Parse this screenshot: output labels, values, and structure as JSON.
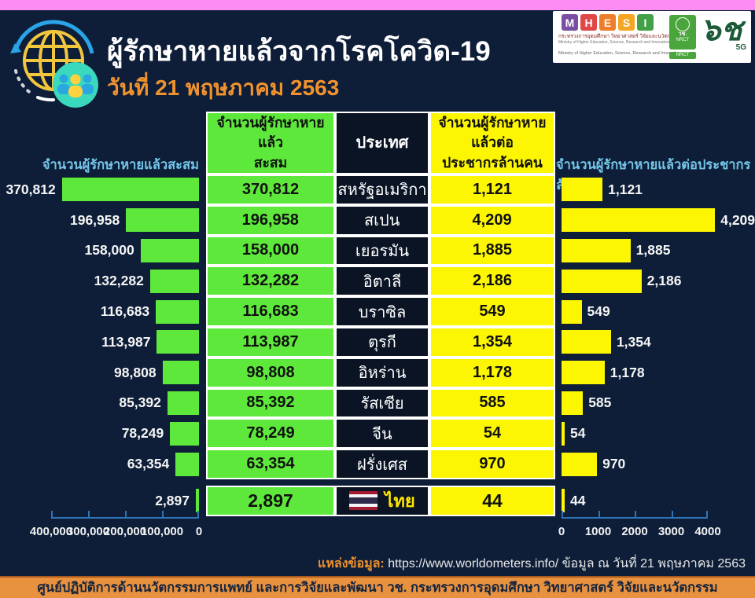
{
  "header": {
    "title": "ผู้รักษาหายแล้วจากโรคโควิด-19",
    "date_line": "วันที่ 21 พฤษภาคม 2563"
  },
  "logos": {
    "mhesi_letters": [
      "M",
      "H",
      "E",
      "S",
      "I"
    ],
    "mhesi_thai": "กระทรวงการอุดมศึกษา วิทยาศาสตร์ วิจัยและนวัตกรรม",
    "mhesi_english": "Ministry of Higher Education, Science, Research and Innovation",
    "mhesi_english2": "Ministry of Higher Education, Science, Research and Innovation",
    "nrct_thai": "วช.",
    "nrct_english": "NRCT",
    "nrct_bar": "NRCT",
    "anniversary_glyph": "๖ช",
    "anniversary_sub": "5G"
  },
  "table": {
    "col_recovered": "จำนวนผู้รักษาหายแล้ว\nสะสม",
    "col_country": "ประเทศ",
    "col_per_million": "จำนวนผู้รักษาหายแล้วต่อ\nประชากรล้านคน"
  },
  "chart_data": {
    "type": "bar",
    "title_left": "จำนวนผู้รักษาหายแล้วสะสม",
    "title_right": "จำนวนผู้รักษาหายแล้วต่อประชากรล้านคน",
    "left_axis": {
      "ticks": [
        "400,000",
        "300,000",
        "200,000",
        "100,000",
        "0"
      ],
      "max": 400000,
      "reversed": true
    },
    "right_axis": {
      "ticks": [
        "0",
        "1000",
        "2000",
        "3000",
        "4000"
      ],
      "max": 4000
    },
    "rows": [
      {
        "country": "สหรัฐอเมริกา",
        "recovered": 370812,
        "recovered_label": "370,812",
        "per_million": 1121,
        "per_million_label": "1,121",
        "highlight": false
      },
      {
        "country": "สเปน",
        "recovered": 196958,
        "recovered_label": "196,958",
        "per_million": 4209,
        "per_million_label": "4,209",
        "highlight": false
      },
      {
        "country": "เยอรมัน",
        "recovered": 158000,
        "recovered_label": "158,000",
        "per_million": 1885,
        "per_million_label": "1,885",
        "highlight": false
      },
      {
        "country": "อิตาลี",
        "recovered": 132282,
        "recovered_label": "132,282",
        "per_million": 2186,
        "per_million_label": "2,186",
        "highlight": false
      },
      {
        "country": "บราซิล",
        "recovered": 116683,
        "recovered_label": "116,683",
        "per_million": 549,
        "per_million_label": "549",
        "highlight": false
      },
      {
        "country": "ตุรกี",
        "recovered": 113987,
        "recovered_label": "113,987",
        "per_million": 1354,
        "per_million_label": "1,354",
        "highlight": false
      },
      {
        "country": "อิหร่าน",
        "recovered": 98808,
        "recovered_label": "98,808",
        "per_million": 1178,
        "per_million_label": "1,178",
        "highlight": false
      },
      {
        "country": "รัสเซีย",
        "recovered": 85392,
        "recovered_label": "85,392",
        "per_million": 585,
        "per_million_label": "585",
        "highlight": false
      },
      {
        "country": "จีน",
        "recovered": 78249,
        "recovered_label": "78,249",
        "per_million": 54,
        "per_million_label": "54",
        "highlight": false
      },
      {
        "country": "ฝรั่งเศส",
        "recovered": 63354,
        "recovered_label": "63,354",
        "per_million": 970,
        "per_million_label": "970",
        "highlight": false
      },
      {
        "country": "ไทย",
        "recovered": 2897,
        "recovered_label": "2,897",
        "per_million": 44,
        "per_million_label": "44",
        "highlight": true
      }
    ]
  },
  "footer": {
    "source_label": "แหล่งข้อมูล:",
    "source_text": " https://www.worldometers.info/ ข้อมูล ณ วันที่ 21 พฤษภาคม 2563",
    "bottom_bar": "ศูนย์ปฏิบัติการด้านนวัตกรรมการแพทย์ และการวิจัยและพัฒนา  วช.   กระทรวงการอุดมศึกษา วิทยาศาสตร์ วิจัยและนวัตกรรม"
  },
  "colors": {
    "background": "#0e1e38",
    "top_strip_pink": "#fb8cf2",
    "bar_green": "#5ee83b",
    "bar_yellow": "#fcf603",
    "dark_cell": "#0a1424",
    "accent_orange": "#f0922e",
    "axis_blue": "#2e74b5",
    "side_title_blue": "#74c6e9",
    "thai_highlight_yellow": "#ffe600"
  }
}
